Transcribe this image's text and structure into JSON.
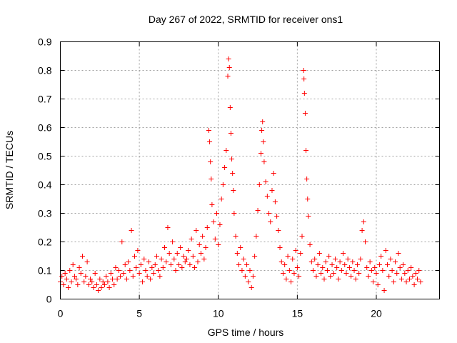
{
  "chart_data": {
    "type": "scatter",
    "title": "Day 267 of 2022, SRMTID for receiver ons1",
    "xlabel": "GPS time / hours",
    "ylabel": "SRMTID / TECUs",
    "xlim": [
      0,
      24
    ],
    "ylim": [
      0,
      0.9
    ],
    "xticks": [
      0,
      5,
      10,
      15,
      20
    ],
    "xtick_labels": [
      "0",
      "5",
      "10",
      "15",
      "20"
    ],
    "yticks": [
      0,
      0.1,
      0.2,
      0.3,
      0.4,
      0.5,
      0.6,
      0.7,
      0.8,
      0.9
    ],
    "ytick_labels": [
      "0",
      "0.1",
      "0.2",
      "0.3",
      "0.4",
      "0.5",
      "0.6",
      "0.7",
      "0.8",
      "0.9"
    ],
    "grid": true,
    "marker": "+",
    "color": "#ff0000",
    "series": [
      {
        "name": "SRMTID",
        "points": [
          [
            0.0,
            0.06
          ],
          [
            0.1,
            0.08
          ],
          [
            0.2,
            0.05
          ],
          [
            0.3,
            0.09
          ],
          [
            0.4,
            0.07
          ],
          [
            0.5,
            0.04
          ],
          [
            0.6,
            0.1
          ],
          [
            0.7,
            0.06
          ],
          [
            0.8,
            0.12
          ],
          [
            0.9,
            0.08
          ],
          [
            1.0,
            0.07
          ],
          [
            1.1,
            0.05
          ],
          [
            1.2,
            0.11
          ],
          [
            1.3,
            0.09
          ],
          [
            1.4,
            0.15
          ],
          [
            1.5,
            0.06
          ],
          [
            1.6,
            0.08
          ],
          [
            1.7,
            0.13
          ],
          [
            1.8,
            0.05
          ],
          [
            1.9,
            0.07
          ],
          [
            2.0,
            0.06
          ],
          [
            2.1,
            0.04
          ],
          [
            2.2,
            0.09
          ],
          [
            2.3,
            0.05
          ],
          [
            2.4,
            0.03
          ],
          [
            2.5,
            0.07
          ],
          [
            2.6,
            0.04
          ],
          [
            2.7,
            0.06
          ],
          [
            2.8,
            0.05
          ],
          [
            2.9,
            0.08
          ],
          [
            3.0,
            0.06
          ],
          [
            3.1,
            0.04
          ],
          [
            3.2,
            0.09
          ],
          [
            3.3,
            0.07
          ],
          [
            3.4,
            0.05
          ],
          [
            3.5,
            0.11
          ],
          [
            3.6,
            0.07
          ],
          [
            3.7,
            0.1
          ],
          [
            3.8,
            0.08
          ],
          [
            3.9,
            0.2
          ],
          [
            4.0,
            0.09
          ],
          [
            4.1,
            0.12
          ],
          [
            4.2,
            0.07
          ],
          [
            4.3,
            0.13
          ],
          [
            4.4,
            0.1
          ],
          [
            4.5,
            0.24
          ],
          [
            4.6,
            0.08
          ],
          [
            4.7,
            0.15
          ],
          [
            4.8,
            0.11
          ],
          [
            4.9,
            0.17
          ],
          [
            5.0,
            0.09
          ],
          [
            5.1,
            0.12
          ],
          [
            5.2,
            0.06
          ],
          [
            5.3,
            0.14
          ],
          [
            5.4,
            0.1
          ],
          [
            5.5,
            0.08
          ],
          [
            5.6,
            0.13
          ],
          [
            5.7,
            0.07
          ],
          [
            5.8,
            0.11
          ],
          [
            5.9,
            0.09
          ],
          [
            6.0,
            0.12
          ],
          [
            6.1,
            0.15
          ],
          [
            6.2,
            0.1
          ],
          [
            6.3,
            0.08
          ],
          [
            6.4,
            0.14
          ],
          [
            6.5,
            0.11
          ],
          [
            6.6,
            0.18
          ],
          [
            6.7,
            0.13
          ],
          [
            6.8,
            0.25
          ],
          [
            6.9,
            0.16
          ],
          [
            7.0,
            0.12
          ],
          [
            7.1,
            0.2
          ],
          [
            7.2,
            0.14
          ],
          [
            7.3,
            0.1
          ],
          [
            7.4,
            0.16
          ],
          [
            7.5,
            0.12
          ],
          [
            7.6,
            0.18
          ],
          [
            7.7,
            0.11
          ],
          [
            7.8,
            0.15
          ],
          [
            7.9,
            0.13
          ],
          [
            8.0,
            0.14
          ],
          [
            8.1,
            0.17
          ],
          [
            8.2,
            0.12
          ],
          [
            8.3,
            0.21
          ],
          [
            8.4,
            0.15
          ],
          [
            8.5,
            0.11
          ],
          [
            8.6,
            0.24
          ],
          [
            8.7,
            0.13
          ],
          [
            8.8,
            0.19
          ],
          [
            8.9,
            0.16
          ],
          [
            9.0,
            0.22
          ],
          [
            9.1,
            0.14
          ],
          [
            9.2,
            0.18
          ],
          [
            9.3,
            0.25
          ],
          [
            9.4,
            0.59
          ],
          [
            9.45,
            0.55
          ],
          [
            9.5,
            0.48
          ],
          [
            9.55,
            0.42
          ],
          [
            9.6,
            0.33
          ],
          [
            9.7,
            0.27
          ],
          [
            9.8,
            0.21
          ],
          [
            9.9,
            0.3
          ],
          [
            10.0,
            0.19
          ],
          [
            10.1,
            0.26
          ],
          [
            10.2,
            0.35
          ],
          [
            10.3,
            0.4
          ],
          [
            10.4,
            0.46
          ],
          [
            10.5,
            0.52
          ],
          [
            10.6,
            0.78
          ],
          [
            10.65,
            0.84
          ],
          [
            10.7,
            0.81
          ],
          [
            10.75,
            0.67
          ],
          [
            10.8,
            0.58
          ],
          [
            10.85,
            0.49
          ],
          [
            10.9,
            0.44
          ],
          [
            10.95,
            0.38
          ],
          [
            11.0,
            0.3
          ],
          [
            11.1,
            0.22
          ],
          [
            11.2,
            0.16
          ],
          [
            11.3,
            0.12
          ],
          [
            11.4,
            0.18
          ],
          [
            11.5,
            0.1
          ],
          [
            11.6,
            0.14
          ],
          [
            11.7,
            0.08
          ],
          [
            11.8,
            0.12
          ],
          [
            11.9,
            0.06
          ],
          [
            12.0,
            0.1
          ],
          [
            12.1,
            0.04
          ],
          [
            12.2,
            0.08
          ],
          [
            12.3,
            0.15
          ],
          [
            12.4,
            0.22
          ],
          [
            12.5,
            0.31
          ],
          [
            12.6,
            0.4
          ],
          [
            12.7,
            0.51
          ],
          [
            12.75,
            0.59
          ],
          [
            12.8,
            0.62
          ],
          [
            12.85,
            0.55
          ],
          [
            12.9,
            0.48
          ],
          [
            13.0,
            0.41
          ],
          [
            13.1,
            0.36
          ],
          [
            13.2,
            0.3
          ],
          [
            13.3,
            0.27
          ],
          [
            13.4,
            0.38
          ],
          [
            13.5,
            0.44
          ],
          [
            13.6,
            0.34
          ],
          [
            13.7,
            0.29
          ],
          [
            13.8,
            0.24
          ],
          [
            13.9,
            0.18
          ],
          [
            14.0,
            0.13
          ],
          [
            14.1,
            0.09
          ],
          [
            14.2,
            0.12
          ],
          [
            14.3,
            0.07
          ],
          [
            14.4,
            0.15
          ],
          [
            14.5,
            0.1
          ],
          [
            14.6,
            0.06
          ],
          [
            14.7,
            0.14
          ],
          [
            14.8,
            0.09
          ],
          [
            14.9,
            0.17
          ],
          [
            15.0,
            0.11
          ],
          [
            15.1,
            0.08
          ],
          [
            15.2,
            0.16
          ],
          [
            15.3,
            0.22
          ],
          [
            15.4,
            0.8
          ],
          [
            15.42,
            0.77
          ],
          [
            15.45,
            0.72
          ],
          [
            15.5,
            0.65
          ],
          [
            15.55,
            0.52
          ],
          [
            15.6,
            0.42
          ],
          [
            15.65,
            0.35
          ],
          [
            15.7,
            0.29
          ],
          [
            15.8,
            0.19
          ],
          [
            15.9,
            0.13
          ],
          [
            16.0,
            0.1
          ],
          [
            16.1,
            0.14
          ],
          [
            16.2,
            0.08
          ],
          [
            16.3,
            0.12
          ],
          [
            16.4,
            0.16
          ],
          [
            16.5,
            0.09
          ],
          [
            16.6,
            0.11
          ],
          [
            16.7,
            0.07
          ],
          [
            16.8,
            0.13
          ],
          [
            16.9,
            0.1
          ],
          [
            17.0,
            0.15
          ],
          [
            17.1,
            0.08
          ],
          [
            17.2,
            0.12
          ],
          [
            17.3,
            0.09
          ],
          [
            17.4,
            0.14
          ],
          [
            17.5,
            0.11
          ],
          [
            17.6,
            0.07
          ],
          [
            17.7,
            0.13
          ],
          [
            17.8,
            0.1
          ],
          [
            17.9,
            0.16
          ],
          [
            18.0,
            0.12
          ],
          [
            18.1,
            0.09
          ],
          [
            18.2,
            0.14
          ],
          [
            18.3,
            0.11
          ],
          [
            18.4,
            0.08
          ],
          [
            18.5,
            0.13
          ],
          [
            18.6,
            0.1
          ],
          [
            18.7,
            0.07
          ],
          [
            18.8,
            0.12
          ],
          [
            18.9,
            0.09
          ],
          [
            19.0,
            0.14
          ],
          [
            19.1,
            0.24
          ],
          [
            19.2,
            0.27
          ],
          [
            19.3,
            0.2
          ],
          [
            19.4,
            0.11
          ],
          [
            19.5,
            0.08
          ],
          [
            19.6,
            0.13
          ],
          [
            19.7,
            0.1
          ],
          [
            19.8,
            0.06
          ],
          [
            19.9,
            0.11
          ],
          [
            20.0,
            0.09
          ],
          [
            20.1,
            0.05
          ],
          [
            20.2,
            0.12
          ],
          [
            20.3,
            0.15
          ],
          [
            20.4,
            0.1
          ],
          [
            20.5,
            0.03
          ],
          [
            20.6,
            0.17
          ],
          [
            20.7,
            0.12
          ],
          [
            20.8,
            0.08
          ],
          [
            20.9,
            0.14
          ],
          [
            21.0,
            0.1
          ],
          [
            21.1,
            0.06
          ],
          [
            21.2,
            0.13
          ],
          [
            21.3,
            0.09
          ],
          [
            21.4,
            0.16
          ],
          [
            21.5,
            0.11
          ],
          [
            21.6,
            0.07
          ],
          [
            21.7,
            0.12
          ],
          [
            21.8,
            0.09
          ],
          [
            21.9,
            0.06
          ],
          [
            22.0,
            0.1
          ],
          [
            22.1,
            0.07
          ],
          [
            22.2,
            0.11
          ],
          [
            22.3,
            0.08
          ],
          [
            22.4,
            0.05
          ],
          [
            22.5,
            0.09
          ],
          [
            22.6,
            0.07
          ],
          [
            22.7,
            0.1
          ],
          [
            22.8,
            0.06
          ]
        ]
      }
    ]
  }
}
